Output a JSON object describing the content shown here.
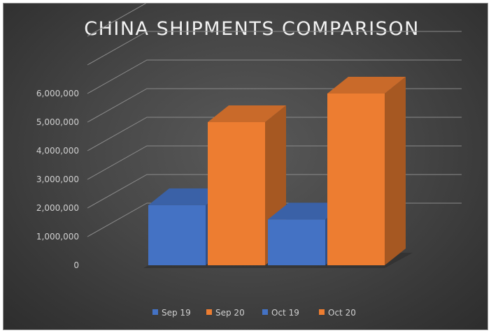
{
  "chart_data": {
    "type": "bar",
    "title": "CHINA SHIPMENTS COMPARISON",
    "xlabel": "",
    "ylabel": "",
    "ylim": [
      0,
      6000000
    ],
    "yticks": [
      0,
      1000000,
      2000000,
      3000000,
      4000000,
      5000000,
      6000000
    ],
    "ytick_labels": [
      "0",
      "1,000,000",
      "2,000,000",
      "3,000,000",
      "4,000,000",
      "5,000,000",
      "6,000,000"
    ],
    "grid": true,
    "three_d": true,
    "legend_position": "bottom",
    "categories": [
      "Sep 19",
      "Sep 20",
      "Oct 19",
      "Oct 20"
    ],
    "values": [
      2100000,
      5000000,
      1600000,
      6000000
    ],
    "colors": [
      "#4472c4",
      "#ed7d31",
      "#4472c4",
      "#ed7d31"
    ]
  },
  "colors": {
    "background": "#474747",
    "title": "#f2f2f2",
    "text": "#d0d0d0",
    "grid": "#8a8a8a"
  }
}
